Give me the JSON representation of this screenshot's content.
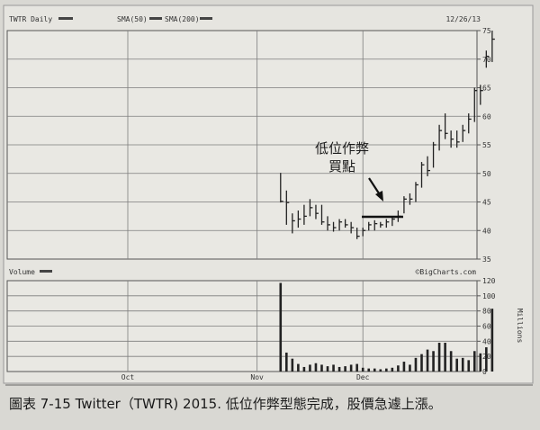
{
  "chart_data": {
    "type": "ohlc",
    "header": {
      "symbol": "TWTR Daily",
      "sma1": "SMA(50)",
      "sma2": "SMA(200)",
      "date": "12/26/13"
    },
    "price_ticks": [
      35,
      40,
      45,
      50,
      55,
      60,
      65,
      70,
      75
    ],
    "ylim": [
      35,
      75
    ],
    "volume_label": "Volume",
    "source": "©BigCharts.com",
    "volume_ticks": [
      0,
      20,
      40,
      60,
      80,
      100,
      120
    ],
    "volume_ylim": [
      0,
      120
    ],
    "volume_unit": "Millions",
    "x_labels": [
      {
        "label": "Oct",
        "index": 0
      },
      {
        "label": "Nov",
        "index": 22
      },
      {
        "label": "Dec",
        "index": 40
      }
    ],
    "annotation": {
      "line1": "低位作弊",
      "line2": "買點"
    },
    "bars": [
      {
        "i": 26,
        "h": 50.1,
        "l": 44.9,
        "c": 45.1,
        "v": 117
      },
      {
        "i": 27,
        "h": 47.0,
        "l": 41.0,
        "c": 44.9,
        "v": 25
      },
      {
        "i": 28,
        "h": 43.0,
        "l": 39.5,
        "c": 41.7,
        "v": 17
      },
      {
        "i": 29,
        "h": 43.5,
        "l": 40.5,
        "c": 42.0,
        "v": 10
      },
      {
        "i": 30,
        "h": 44.5,
        "l": 41.0,
        "c": 42.5,
        "v": 6
      },
      {
        "i": 31,
        "h": 45.5,
        "l": 42.5,
        "c": 44.0,
        "v": 9
      },
      {
        "i": 32,
        "h": 44.5,
        "l": 42.0,
        "c": 43.0,
        "v": 11
      },
      {
        "i": 33,
        "h": 44.5,
        "l": 41.0,
        "c": 41.5,
        "v": 9
      },
      {
        "i": 34,
        "h": 42.5,
        "l": 40.0,
        "c": 41.0,
        "v": 7
      },
      {
        "i": 35,
        "h": 41.5,
        "l": 39.8,
        "c": 40.5,
        "v": 9
      },
      {
        "i": 36,
        "h": 42.0,
        "l": 40.0,
        "c": 41.5,
        "v": 6
      },
      {
        "i": 37,
        "h": 42.0,
        "l": 40.5,
        "c": 41.0,
        "v": 7
      },
      {
        "i": 38,
        "h": 41.5,
        "l": 39.5,
        "c": 40.5,
        "v": 9
      },
      {
        "i": 39,
        "h": 40.5,
        "l": 38.5,
        "c": 39.0,
        "v": 10
      },
      {
        "i": 40,
        "h": 40.5,
        "l": 39.0,
        "c": 40.0,
        "v": 5
      },
      {
        "i": 41,
        "h": 41.5,
        "l": 40.0,
        "c": 41.0,
        "v": 4
      },
      {
        "i": 42,
        "h": 41.8,
        "l": 40.0,
        "c": 41.2,
        "v": 4
      },
      {
        "i": 43,
        "h": 41.5,
        "l": 40.5,
        "c": 41.0,
        "v": 3
      },
      {
        "i": 44,
        "h": 42.0,
        "l": 40.5,
        "c": 41.5,
        "v": 4
      },
      {
        "i": 45,
        "h": 42.5,
        "l": 40.8,
        "c": 42.0,
        "v": 5
      },
      {
        "i": 46,
        "h": 43.5,
        "l": 41.5,
        "c": 42.5,
        "v": 8
      },
      {
        "i": 47,
        "h": 46.0,
        "l": 43.0,
        "c": 45.5,
        "v": 13
      },
      {
        "i": 48,
        "h": 46.5,
        "l": 44.5,
        "c": 45.5,
        "v": 9
      },
      {
        "i": 49,
        "h": 48.5,
        "l": 45.0,
        "c": 48.0,
        "v": 18
      },
      {
        "i": 50,
        "h": 52.0,
        "l": 47.5,
        "c": 51.5,
        "v": 23
      },
      {
        "i": 51,
        "h": 53.0,
        "l": 49.5,
        "c": 50.5,
        "v": 29
      },
      {
        "i": 52,
        "h": 55.5,
        "l": 51.0,
        "c": 55.0,
        "v": 27
      },
      {
        "i": 53,
        "h": 58.5,
        "l": 54.0,
        "c": 57.5,
        "v": 38
      },
      {
        "i": 54,
        "h": 60.5,
        "l": 56.0,
        "c": 57.0,
        "v": 38
      },
      {
        "i": 55,
        "h": 57.5,
        "l": 54.5,
        "c": 56.0,
        "v": 27
      },
      {
        "i": 56,
        "h": 57.5,
        "l": 54.5,
        "c": 55.5,
        "v": 17
      },
      {
        "i": 57,
        "h": 58.5,
        "l": 55.5,
        "c": 57.5,
        "v": 18
      },
      {
        "i": 58,
        "h": 60.5,
        "l": 57.0,
        "c": 59.5,
        "v": 15
      },
      {
        "i": 59,
        "h": 65.0,
        "l": 59.0,
        "c": 64.5,
        "v": 27
      },
      {
        "i": 60,
        "h": 65.5,
        "l": 62.0,
        "c": 64.5,
        "v": 24
      },
      {
        "i": 61,
        "h": 71.5,
        "l": 68.5,
        "c": 70.5,
        "v": 32
      },
      {
        "i": 62,
        "h": 75.0,
        "l": 69.5,
        "c": 73.5,
        "v": 83
      }
    ]
  },
  "caption": "圖表 7-15 Twitter（TWTR) 2015. 低位作弊型態完成，股價急遽上漲。"
}
